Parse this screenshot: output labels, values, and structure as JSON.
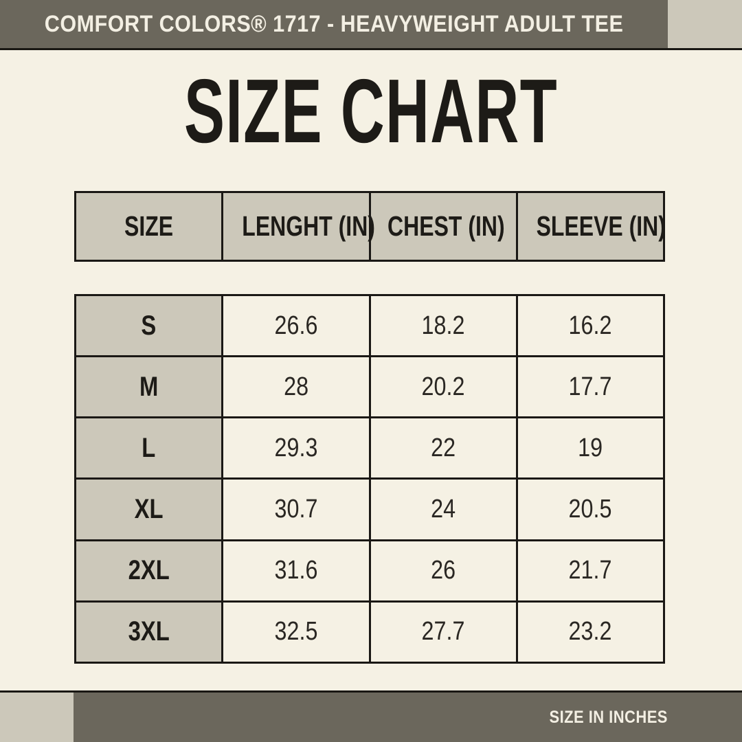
{
  "top_banner": {
    "title": "COMFORT COLORS® 1717 - HEAVYWEIGHT ADULT TEE"
  },
  "page_title": "SIZE CHART",
  "footer": {
    "note": "SIZE IN INCHES"
  },
  "table": {
    "headers": [
      "SIZE",
      "LENGHT (IN)",
      "CHEST (IN)",
      "SLEEVE (IN)"
    ],
    "rows": [
      [
        "S",
        "26.6",
        "18.2",
        "16.2"
      ],
      [
        "M",
        "28",
        "20.2",
        "17.7"
      ],
      [
        "L",
        "29.3",
        "22",
        "19"
      ],
      [
        "XL",
        "30.7",
        "24",
        "20.5"
      ],
      [
        "2XL",
        "31.6",
        "26",
        "21.7"
      ],
      [
        "3XL",
        "32.5",
        "27.7",
        "23.2"
      ]
    ]
  },
  "chart_data": {
    "type": "table",
    "title": "SIZE CHART",
    "subtitle": "COMFORT COLORS® 1717 - HEAVYWEIGHT ADULT TEE",
    "units": "inches",
    "columns": [
      "SIZE",
      "LENGHT (IN)",
      "CHEST (IN)",
      "SLEEVE (IN)"
    ],
    "rows": [
      {
        "size": "S",
        "length_in": 26.6,
        "chest_in": 18.2,
        "sleeve_in": 16.2
      },
      {
        "size": "M",
        "length_in": 28,
        "chest_in": 20.2,
        "sleeve_in": 17.7
      },
      {
        "size": "L",
        "length_in": 29.3,
        "chest_in": 22,
        "sleeve_in": 19
      },
      {
        "size": "XL",
        "length_in": 30.7,
        "chest_in": 24,
        "sleeve_in": 20.5
      },
      {
        "size": "2XL",
        "length_in": 31.6,
        "chest_in": 26,
        "sleeve_in": 21.7
      },
      {
        "size": "3XL",
        "length_in": 32.5,
        "chest_in": 27.7,
        "sleeve_in": 23.2
      }
    ],
    "note": "SIZE IN INCHES"
  },
  "colors": {
    "background_cream": "#f5f1e4",
    "accent_beige": "#ccc8ba",
    "bar_dark_olive": "#6b675c",
    "border_black": "#1a1815",
    "text_dark": "#1d1b17",
    "text_cream": "#f3efe3"
  }
}
